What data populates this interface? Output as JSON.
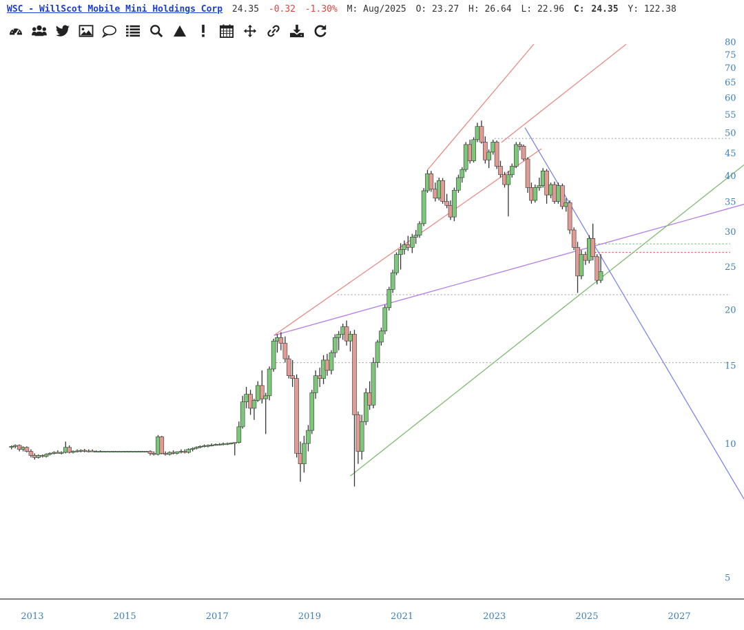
{
  "header": {
    "title": "WSC - WillScot Mobile Mini Holdings Corp",
    "last": "24.35",
    "change": "-0.32",
    "change_pct": "-1.30%",
    "period": "M: Aug/2025",
    "open": "O: 23.27",
    "high": "H: 26.64",
    "low": "L: 22.96",
    "close_label": "C:",
    "close": "24.35",
    "y_readout": "Y: 122.38"
  },
  "toolbar": [
    {
      "name": "dashboard-icon"
    },
    {
      "name": "users-icon"
    },
    {
      "name": "twitter-icon"
    },
    {
      "name": "image-icon"
    },
    {
      "name": "comment-icon"
    },
    {
      "name": "list-icon"
    },
    {
      "name": "search-icon"
    },
    {
      "name": "triangle-icon"
    },
    {
      "name": "exclamation-icon"
    },
    {
      "name": "calendar-icon"
    },
    {
      "name": "move-icon"
    },
    {
      "name": "link-icon"
    },
    {
      "name": "download-icon"
    },
    {
      "name": "refresh-icon"
    }
  ],
  "chart_data": {
    "type": "candlestick",
    "scale": "log",
    "ylim": [
      4.8,
      84
    ],
    "xlim": [
      2012.3,
      2028.4
    ],
    "y_ticks": [
      5,
      10,
      15,
      20,
      25,
      30,
      35,
      40,
      45,
      50,
      55,
      60,
      65,
      70,
      75,
      80
    ],
    "x_ticks": [
      "2013",
      "2015",
      "2017",
      "2019",
      "2021",
      "2023",
      "2025",
      "2027"
    ],
    "colors": {
      "up": "#7cc77a",
      "down": "#e29a94",
      "wick": "#333333"
    },
    "candles": [
      [
        2012.55,
        9.8,
        9.9,
        9.7,
        9.85
      ],
      [
        2012.63,
        9.85,
        9.95,
        9.75,
        9.9
      ],
      [
        2012.72,
        9.9,
        9.95,
        9.6,
        9.7
      ],
      [
        2012.8,
        9.7,
        9.85,
        9.6,
        9.8
      ],
      [
        2012.88,
        9.8,
        9.85,
        9.55,
        9.6
      ],
      [
        2012.97,
        9.6,
        9.7,
        9.3,
        9.4
      ],
      [
        2013.05,
        9.4,
        9.5,
        9.2,
        9.3
      ],
      [
        2013.13,
        9.3,
        9.45,
        9.25,
        9.4
      ],
      [
        2013.22,
        9.4,
        9.45,
        9.3,
        9.35
      ],
      [
        2013.3,
        9.35,
        9.5,
        9.3,
        9.45
      ],
      [
        2013.38,
        9.45,
        9.55,
        9.4,
        9.5
      ],
      [
        2013.47,
        9.5,
        9.6,
        9.45,
        9.55
      ],
      [
        2013.55,
        9.55,
        9.65,
        9.5,
        9.5
      ],
      [
        2013.63,
        9.5,
        9.6,
        9.45,
        9.55
      ],
      [
        2013.72,
        9.55,
        10.1,
        9.5,
        9.8
      ],
      [
        2013.8,
        9.8,
        9.9,
        9.5,
        9.55
      ],
      [
        2013.88,
        9.55,
        9.65,
        9.5,
        9.6
      ],
      [
        2013.97,
        9.6,
        9.7,
        9.55,
        9.62
      ],
      [
        2014.05,
        9.62,
        9.7,
        9.55,
        9.65
      ],
      [
        2014.13,
        9.65,
        9.72,
        9.55,
        9.6
      ],
      [
        2014.22,
        9.6,
        9.7,
        9.55,
        9.62
      ],
      [
        2014.3,
        9.62,
        9.7,
        9.58,
        9.6
      ],
      [
        2014.38,
        9.6,
        9.65,
        9.58,
        9.6
      ],
      [
        2014.47,
        9.6,
        9.65,
        9.58,
        9.6
      ],
      [
        2014.55,
        9.6,
        9.62,
        9.58,
        9.6
      ],
      [
        2014.63,
        9.6,
        9.62,
        9.58,
        9.6
      ],
      [
        2014.72,
        9.6,
        9.62,
        9.58,
        9.6
      ],
      [
        2014.8,
        9.6,
        9.62,
        9.58,
        9.6
      ],
      [
        2014.88,
        9.6,
        9.62,
        9.58,
        9.6
      ],
      [
        2014.97,
        9.6,
        9.62,
        9.58,
        9.6
      ],
      [
        2015.05,
        9.6,
        9.62,
        9.58,
        9.6
      ],
      [
        2015.13,
        9.6,
        9.62,
        9.58,
        9.6
      ],
      [
        2015.22,
        9.6,
        9.62,
        9.58,
        9.6
      ],
      [
        2015.3,
        9.6,
        9.62,
        9.58,
        9.6
      ],
      [
        2015.38,
        9.6,
        9.62,
        9.58,
        9.6
      ],
      [
        2015.47,
        9.6,
        9.62,
        9.58,
        9.6
      ],
      [
        2015.55,
        9.6,
        9.65,
        9.4,
        9.5
      ],
      [
        2015.63,
        9.5,
        9.6,
        9.4,
        9.45
      ],
      [
        2015.72,
        9.45,
        10.45,
        9.4,
        10.35
      ],
      [
        2015.8,
        10.35,
        10.4,
        9.45,
        9.5
      ],
      [
        2015.88,
        9.5,
        9.6,
        9.4,
        9.45
      ],
      [
        2015.97,
        9.45,
        9.6,
        9.4,
        9.55
      ],
      [
        2016.05,
        9.55,
        9.65,
        9.45,
        9.5
      ],
      [
        2016.13,
        9.5,
        9.6,
        9.45,
        9.58
      ],
      [
        2016.22,
        9.58,
        9.7,
        9.5,
        9.6
      ],
      [
        2016.3,
        9.6,
        9.7,
        9.5,
        9.55
      ],
      [
        2016.38,
        9.55,
        9.75,
        9.5,
        9.7
      ],
      [
        2016.47,
        9.7,
        9.8,
        9.6,
        9.75
      ],
      [
        2016.55,
        9.75,
        9.85,
        9.7,
        9.8
      ],
      [
        2016.63,
        9.8,
        9.9,
        9.75,
        9.85
      ],
      [
        2016.72,
        9.85,
        9.95,
        9.8,
        9.88
      ],
      [
        2016.8,
        9.88,
        9.95,
        9.8,
        9.9
      ],
      [
        2016.88,
        9.9,
        10.0,
        9.85,
        9.92
      ],
      [
        2016.97,
        9.92,
        10.0,
        9.88,
        9.95
      ],
      [
        2017.05,
        9.95,
        10.02,
        9.9,
        9.96
      ],
      [
        2017.13,
        9.96,
        10.05,
        9.9,
        9.98
      ],
      [
        2017.22,
        9.98,
        10.05,
        9.92,
        10.0
      ],
      [
        2017.3,
        10.0,
        10.05,
        9.95,
        10.02
      ],
      [
        2017.38,
        10.02,
        10.05,
        9.4,
        10.05
      ],
      [
        2017.47,
        10.05,
        11.2,
        10.0,
        10.9
      ],
      [
        2017.55,
        10.9,
        12.8,
        10.8,
        12.4
      ],
      [
        2017.63,
        12.4,
        13.4,
        12.0,
        12.9
      ],
      [
        2017.72,
        12.9,
        13.2,
        11.6,
        12.0
      ],
      [
        2017.8,
        12.0,
        12.6,
        11.3,
        12.5
      ],
      [
        2017.88,
        12.5,
        13.8,
        12.4,
        13.5
      ],
      [
        2017.97,
        13.5,
        14.6,
        12.3,
        12.6
      ],
      [
        2018.05,
        12.6,
        13.0,
        10.5,
        12.8
      ],
      [
        2018.13,
        12.8,
        14.9,
        12.5,
        14.7
      ],
      [
        2018.22,
        14.7,
        17.2,
        14.5,
        17.0
      ],
      [
        2018.3,
        17.0,
        17.6,
        16.0,
        17.3
      ],
      [
        2018.38,
        17.3,
        17.8,
        16.2,
        16.8
      ],
      [
        2018.47,
        16.8,
        17.4,
        15.2,
        15.5
      ],
      [
        2018.55,
        15.5,
        15.8,
        14.0,
        14.2
      ],
      [
        2018.63,
        14.2,
        15.4,
        13.4,
        14.0
      ],
      [
        2018.72,
        14.0,
        14.3,
        9.3,
        9.5
      ],
      [
        2018.8,
        9.5,
        10.1,
        8.2,
        9.0
      ],
      [
        2018.88,
        9.0,
        10.4,
        8.6,
        10.0
      ],
      [
        2018.97,
        10.0,
        11.0,
        9.6,
        10.7
      ],
      [
        2019.05,
        10.7,
        13.2,
        10.5,
        13.0
      ],
      [
        2019.13,
        13.0,
        14.6,
        12.6,
        14.2
      ],
      [
        2019.22,
        14.2,
        14.8,
        13.4,
        14.0
      ],
      [
        2019.3,
        14.0,
        15.8,
        13.6,
        15.4
      ],
      [
        2019.38,
        15.4,
        15.9,
        14.2,
        14.6
      ],
      [
        2019.47,
        14.6,
        16.2,
        14.3,
        16.0
      ],
      [
        2019.55,
        16.0,
        17.6,
        15.6,
        17.3
      ],
      [
        2019.63,
        17.3,
        17.9,
        16.2,
        17.6
      ],
      [
        2019.72,
        17.6,
        18.6,
        17.1,
        18.3
      ],
      [
        2019.8,
        18.3,
        18.9,
        16.6,
        17.0
      ],
      [
        2019.88,
        17.0,
        17.9,
        16.1,
        17.6
      ],
      [
        2019.97,
        17.6,
        18.0,
        8.0,
        11.6
      ],
      [
        2020.05,
        11.6,
        11.8,
        9.0,
        9.6
      ],
      [
        2020.13,
        9.6,
        11.6,
        9.2,
        11.2
      ],
      [
        2020.22,
        11.2,
        13.3,
        11.0,
        13.0
      ],
      [
        2020.3,
        13.0,
        13.8,
        11.9,
        12.2
      ],
      [
        2020.38,
        12.2,
        15.6,
        12.0,
        15.2
      ],
      [
        2020.47,
        15.2,
        17.1,
        14.8,
        16.9
      ],
      [
        2020.55,
        16.9,
        18.2,
        16.6,
        17.9
      ],
      [
        2020.63,
        17.9,
        20.5,
        17.6,
        20.2
      ],
      [
        2020.72,
        20.2,
        22.5,
        19.9,
        22.2
      ],
      [
        2020.8,
        22.2,
        24.6,
        21.8,
        24.2
      ],
      [
        2020.88,
        24.2,
        26.9,
        23.9,
        26.6
      ],
      [
        2020.97,
        26.6,
        28.2,
        24.6,
        27.3
      ],
      [
        2021.05,
        27.3,
        28.6,
        26.6,
        28.0
      ],
      [
        2021.13,
        28.0,
        29.3,
        27.1,
        27.6
      ],
      [
        2021.22,
        27.6,
        29.6,
        26.8,
        29.1
      ],
      [
        2021.3,
        29.1,
        30.2,
        28.1,
        29.4
      ],
      [
        2021.38,
        29.4,
        31.6,
        29.0,
        31.2
      ],
      [
        2021.47,
        31.2,
        37.5,
        30.8,
        37.0
      ],
      [
        2021.55,
        37.0,
        41.2,
        36.6,
        40.4
      ],
      [
        2021.63,
        40.4,
        41.0,
        36.8,
        37.3
      ],
      [
        2021.72,
        37.3,
        38.6,
        35.0,
        35.6
      ],
      [
        2021.8,
        35.6,
        39.6,
        35.2,
        39.0
      ],
      [
        2021.88,
        39.0,
        39.5,
        34.6,
        35.0
      ],
      [
        2021.97,
        35.0,
        36.4,
        33.8,
        34.3
      ],
      [
        2022.05,
        34.3,
        35.2,
        31.8,
        32.3
      ],
      [
        2022.13,
        32.3,
        37.6,
        31.6,
        37.1
      ],
      [
        2022.22,
        37.1,
        40.2,
        36.6,
        39.6
      ],
      [
        2022.3,
        39.6,
        41.8,
        38.6,
        41.3
      ],
      [
        2022.38,
        41.3,
        47.6,
        40.8,
        47.0
      ],
      [
        2022.47,
        47.0,
        48.2,
        42.6,
        43.2
      ],
      [
        2022.55,
        43.2,
        48.8,
        42.8,
        48.2
      ],
      [
        2022.63,
        48.2,
        52.6,
        47.6,
        51.6
      ],
      [
        2022.72,
        51.6,
        53.2,
        47.2,
        47.6
      ],
      [
        2022.8,
        47.6,
        49.0,
        42.6,
        43.4
      ],
      [
        2022.88,
        43.4,
        45.8,
        41.6,
        45.2
      ],
      [
        2022.97,
        45.2,
        48.2,
        44.6,
        47.6
      ],
      [
        2023.05,
        47.6,
        48.0,
        41.4,
        42.0
      ],
      [
        2023.13,
        42.0,
        43.2,
        39.6,
        40.2
      ],
      [
        2023.22,
        40.2,
        40.8,
        37.6,
        38.2
      ],
      [
        2023.3,
        38.2,
        41.0,
        32.4,
        40.2
      ],
      [
        2023.38,
        40.2,
        42.6,
        39.6,
        42.0
      ],
      [
        2023.47,
        42.0,
        47.6,
        41.6,
        47.0
      ],
      [
        2023.55,
        47.0,
        47.6,
        45.6,
        46.6
      ],
      [
        2023.63,
        46.6,
        47.0,
        43.2,
        43.6
      ],
      [
        2023.72,
        43.6,
        44.0,
        36.6,
        37.6
      ],
      [
        2023.8,
        37.6,
        38.6,
        34.6,
        35.2
      ],
      [
        2023.88,
        35.2,
        38.2,
        34.8,
        37.6
      ],
      [
        2023.97,
        37.6,
        39.6,
        37.0,
        38.0
      ],
      [
        2024.05,
        38.0,
        41.6,
        37.6,
        41.0
      ],
      [
        2024.13,
        41.0,
        41.4,
        34.6,
        36.2
      ],
      [
        2024.22,
        36.2,
        38.6,
        35.6,
        38.2
      ],
      [
        2024.3,
        38.2,
        38.8,
        34.6,
        35.0
      ],
      [
        2024.38,
        35.0,
        38.6,
        34.6,
        38.0
      ],
      [
        2024.47,
        38.0,
        38.4,
        33.6,
        34.1
      ],
      [
        2024.55,
        34.1,
        35.6,
        33.2,
        34.8
      ],
      [
        2024.63,
        34.8,
        35.2,
        29.6,
        30.2
      ],
      [
        2024.72,
        30.2,
        30.6,
        27.2,
        27.6
      ],
      [
        2024.8,
        27.6,
        28.4,
        21.8,
        23.8
      ],
      [
        2024.88,
        23.8,
        27.2,
        23.4,
        26.6
      ],
      [
        2024.97,
        26.6,
        27.0,
        25.2,
        25.8
      ],
      [
        2025.05,
        25.8,
        29.4,
        25.4,
        28.9
      ],
      [
        2025.13,
        28.9,
        31.2,
        25.8,
        26.3
      ],
      [
        2025.22,
        26.3,
        26.64,
        22.8,
        23.27
      ],
      [
        2025.3,
        23.27,
        26.64,
        22.96,
        24.35
      ]
    ],
    "lines": [
      {
        "kind": "channel",
        "color": "#e88b84",
        "points": [
          [
            2018.23,
            17.5
          ],
          [
            2024.02,
            46.0
          ]
        ]
      },
      {
        "kind": "channel",
        "color": "#e88b84",
        "points": [
          [
            2021.55,
            41.2
          ],
          [
            2023.85,
            79.0
          ]
        ]
      },
      {
        "kind": "channel",
        "color": "#e88b84",
        "points": [
          [
            2023.15,
            47.5
          ],
          [
            2025.85,
            79.0
          ]
        ]
      },
      {
        "kind": "trend",
        "color": "#b27be8",
        "points": [
          [
            2018.23,
            17.5
          ],
          [
            2028.4,
            34.5
          ]
        ]
      },
      {
        "kind": "trend",
        "color": "#7cba6e",
        "points": [
          [
            2019.88,
            8.45
          ],
          [
            2028.4,
            42.3
          ]
        ]
      },
      {
        "kind": "trend",
        "color": "#7b86ea",
        "points": [
          [
            2023.66,
            51.3
          ],
          [
            2028.4,
            7.5
          ]
        ]
      }
    ],
    "hlines": [
      {
        "y": 48.5,
        "color": "#aaaaaa",
        "dash": "dotted",
        "x_from": 2023.0
      },
      {
        "y": 28.1,
        "color": "#6cc46a",
        "dash": "dotted",
        "x_from": 2025.1
      },
      {
        "y": 26.9,
        "color": "#e2443a",
        "dash": "dotted",
        "x_from": 2025.1
      },
      {
        "y": 21.6,
        "color": "#aaaaaa",
        "dash": "dotted",
        "x_from": 2019.6
      },
      {
        "y": 15.2,
        "color": "#aaaaaa",
        "dash": "dotted",
        "x_from": 2018.2
      }
    ]
  }
}
